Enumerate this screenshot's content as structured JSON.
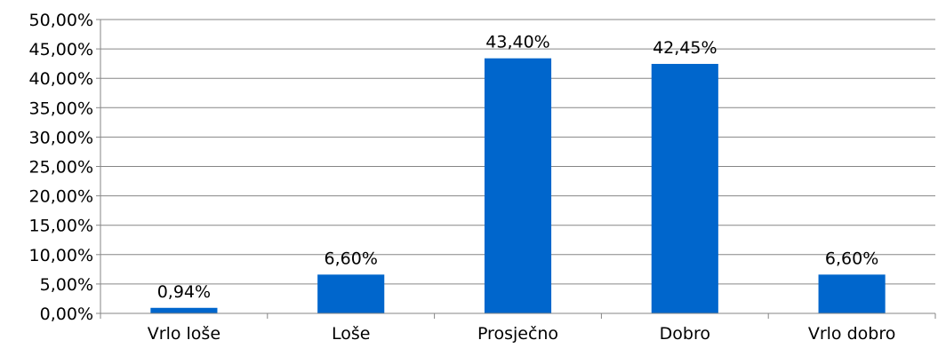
{
  "chart_data": {
    "type": "bar",
    "categories": [
      "Vrlo loše",
      "Loše",
      "Prosječno",
      "Dobro",
      "Vrlo dobro"
    ],
    "values": [
      0.94,
      6.6,
      43.4,
      42.45,
      6.6
    ],
    "data_labels": [
      "0,94%",
      "6,60%",
      "43,40%",
      "42,45%",
      "6,60%"
    ],
    "ylim": [
      0,
      50
    ],
    "ytick_values": [
      0,
      5,
      10,
      15,
      20,
      25,
      30,
      35,
      40,
      45,
      50
    ],
    "ytick_labels": [
      "0,00%",
      "5,00%",
      "10,00%",
      "15,00%",
      "20,00%",
      "25,00%",
      "30,00%",
      "35,00%",
      "40,00%",
      "45,00%",
      "50,00%"
    ],
    "grid": true,
    "legend": "none",
    "colors": {
      "bar": "#0066CC",
      "grid": "#868686",
      "axis": "#868686"
    }
  }
}
